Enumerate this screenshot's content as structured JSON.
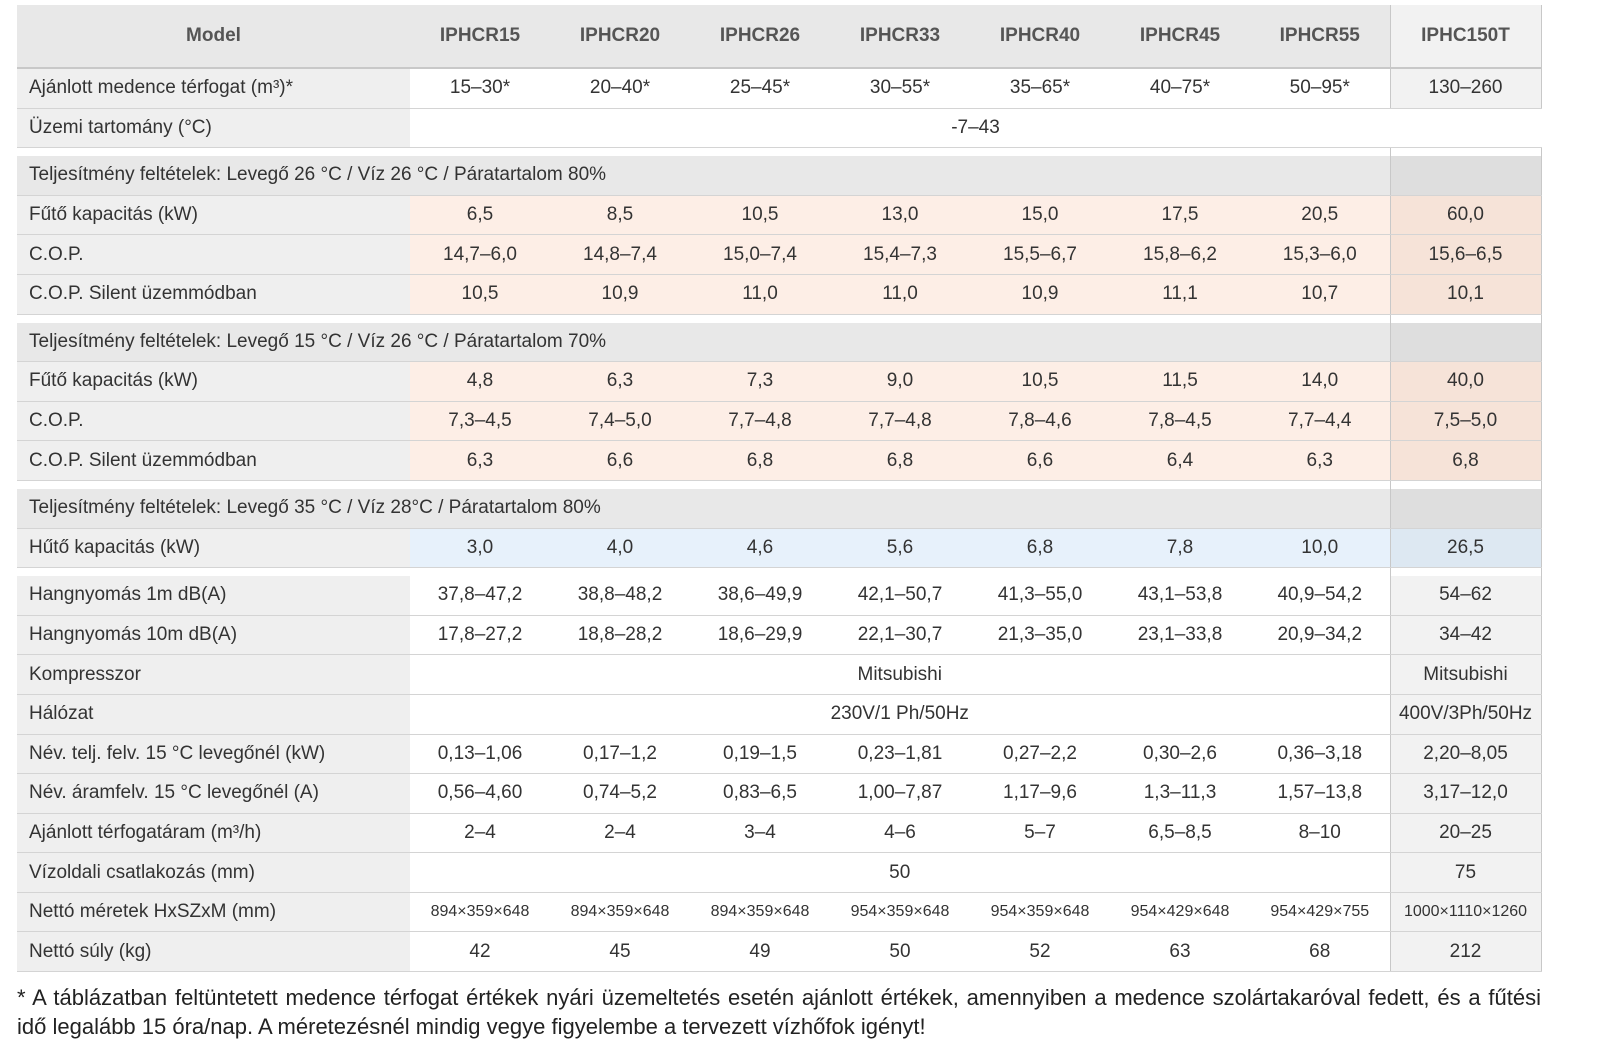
{
  "header": {
    "label": "Model",
    "models": [
      "IPHCR15",
      "IPHCR20",
      "IPHCR26",
      "IPHCR33",
      "IPHCR40",
      "IPHCR45",
      "IPHCR55",
      "IPHC150T"
    ]
  },
  "groups": [
    {
      "rows": [
        {
          "label": "Ajánlott medence térfogat (m³)*",
          "values": [
            "15–30*",
            "20–40*",
            "25–45*",
            "30–55*",
            "35–65*",
            "40–75*",
            "50–95*",
            "130–260"
          ]
        },
        {
          "label": "Üzemi tartomány (°C)",
          "values": [
            "-7–43"
          ]
        }
      ]
    },
    {
      "title": "Teljesítmény feltételek: Levegő 26 °C / Víz 26 °C / Páratartalom 80%",
      "rows": [
        {
          "label": "Fűtő kapacitás (kW)",
          "values": [
            "6,5",
            "8,5",
            "10,5",
            "13,0",
            "15,0",
            "17,5",
            "20,5",
            "60,0"
          ]
        },
        {
          "label": "C.O.P.",
          "values": [
            "14,7–6,0",
            "14,8–7,4",
            "15,0–7,4",
            "15,4–7,3",
            "15,5–6,7",
            "15,8–6,2",
            "15,3–6,0",
            "15,6–6,5"
          ]
        },
        {
          "label": "C.O.P. Silent üzemmódban",
          "values": [
            "10,5",
            "10,9",
            "11,0",
            "11,0",
            "10,9",
            "11,1",
            "10,7",
            "10,1"
          ]
        }
      ]
    },
    {
      "title": "Teljesítmény feltételek: Levegő 15 °C / Víz 26 °C / Páratartalom 70%",
      "rows": [
        {
          "label": "Fűtő kapacitás (kW)",
          "values": [
            "4,8",
            "6,3",
            "7,3",
            "9,0",
            "10,5",
            "11,5",
            "14,0",
            "40,0"
          ]
        },
        {
          "label": "C.O.P.",
          "values": [
            "7,3–4,5",
            "7,4–5,0",
            "7,7–4,8",
            "7,7–4,8",
            "7,8–4,6",
            "7,8–4,5",
            "7,7–4,4",
            "7,5–5,0"
          ]
        },
        {
          "label": "C.O.P. Silent üzemmódban",
          "values": [
            "6,3",
            "6,6",
            "6,8",
            "6,8",
            "6,6",
            "6,4",
            "6,3",
            "6,8"
          ]
        }
      ]
    },
    {
      "title": "Teljesítmény feltételek: Levegő 35 °C / Víz 28°C / Páratartalom 80%",
      "rows": [
        {
          "label": "Hűtő kapacitás (kW)",
          "values": [
            "3,0",
            "4,0",
            "4,6",
            "5,6",
            "6,8",
            "7,8",
            "10,0",
            "26,5"
          ]
        }
      ]
    },
    {
      "rows": [
        {
          "label": "Hangnyomás 1m dB(A)",
          "values": [
            "37,8–47,2",
            "38,8–48,2",
            "38,6–49,9",
            "42,1–50,7",
            "41,3–55,0",
            "43,1–53,8",
            "40,9–54,2",
            "54–62"
          ]
        },
        {
          "label": "Hangnyomás 10m dB(A)",
          "values": [
            "17,8–27,2",
            "18,8–28,2",
            "18,6–29,9",
            "22,1–30,7",
            "21,3–35,0",
            "23,1–33,8",
            "20,9–34,2",
            "34–42"
          ]
        },
        {
          "label": "Kompresszor",
          "values": [
            "Mitsubishi",
            "Mitsubishi"
          ]
        },
        {
          "label": "Hálózat",
          "values": [
            "230V/1 Ph/50Hz",
            "400V/3Ph/50Hz"
          ]
        },
        {
          "label": "Név. telj. felv. 15 °C levegőnél (kW)",
          "values": [
            "0,13–1,06",
            "0,17–1,2",
            "0,19–1,5",
            "0,23–1,81",
            "0,27–2,2",
            "0,30–2,6",
            "0,36–3,18",
            "2,20–8,05"
          ]
        },
        {
          "label": "Név. áramfelv. 15 °C levegőnél (A)",
          "values": [
            "0,56–4,60",
            "0,74–5,2",
            "0,83–6,5",
            "1,00–7,87",
            "1,17–9,6",
            "1,3–11,3",
            "1,57–13,8",
            "3,17–12,0"
          ]
        },
        {
          "label": "Ajánlott térfogatáram (m³/h)",
          "values": [
            "2–4",
            "2–4",
            "3–4",
            "4–6",
            "5–7",
            "6,5–8,5",
            "8–10",
            "20–25"
          ]
        },
        {
          "label": "Vízoldali csatlakozás (mm)",
          "values": [
            "50",
            "75"
          ]
        },
        {
          "label": "Nettó méretek HxSZxM (mm)",
          "values": [
            "894×359×648",
            "894×359×648",
            "894×359×648",
            "954×359×648",
            "954×359×648",
            "954×429×648",
            "954×429×755",
            "1000×1110×1260"
          ]
        },
        {
          "label": "Nettó súly (kg)",
          "values": [
            "42",
            "45",
            "49",
            "50",
            "52",
            "63",
            "68",
            "212"
          ]
        }
      ]
    }
  ],
  "footnote": "* A táblázatban feltüntetett medence térfogat értékek nyári üzemeltetés esetén ajánlott értékek, amennyiben a medence szolártakaróval fedett, és a fűtési idő legalább 15 óra/nap. A méretezésnél mindig vegye figyelembe a tervezett vízhőfok igényt!"
}
